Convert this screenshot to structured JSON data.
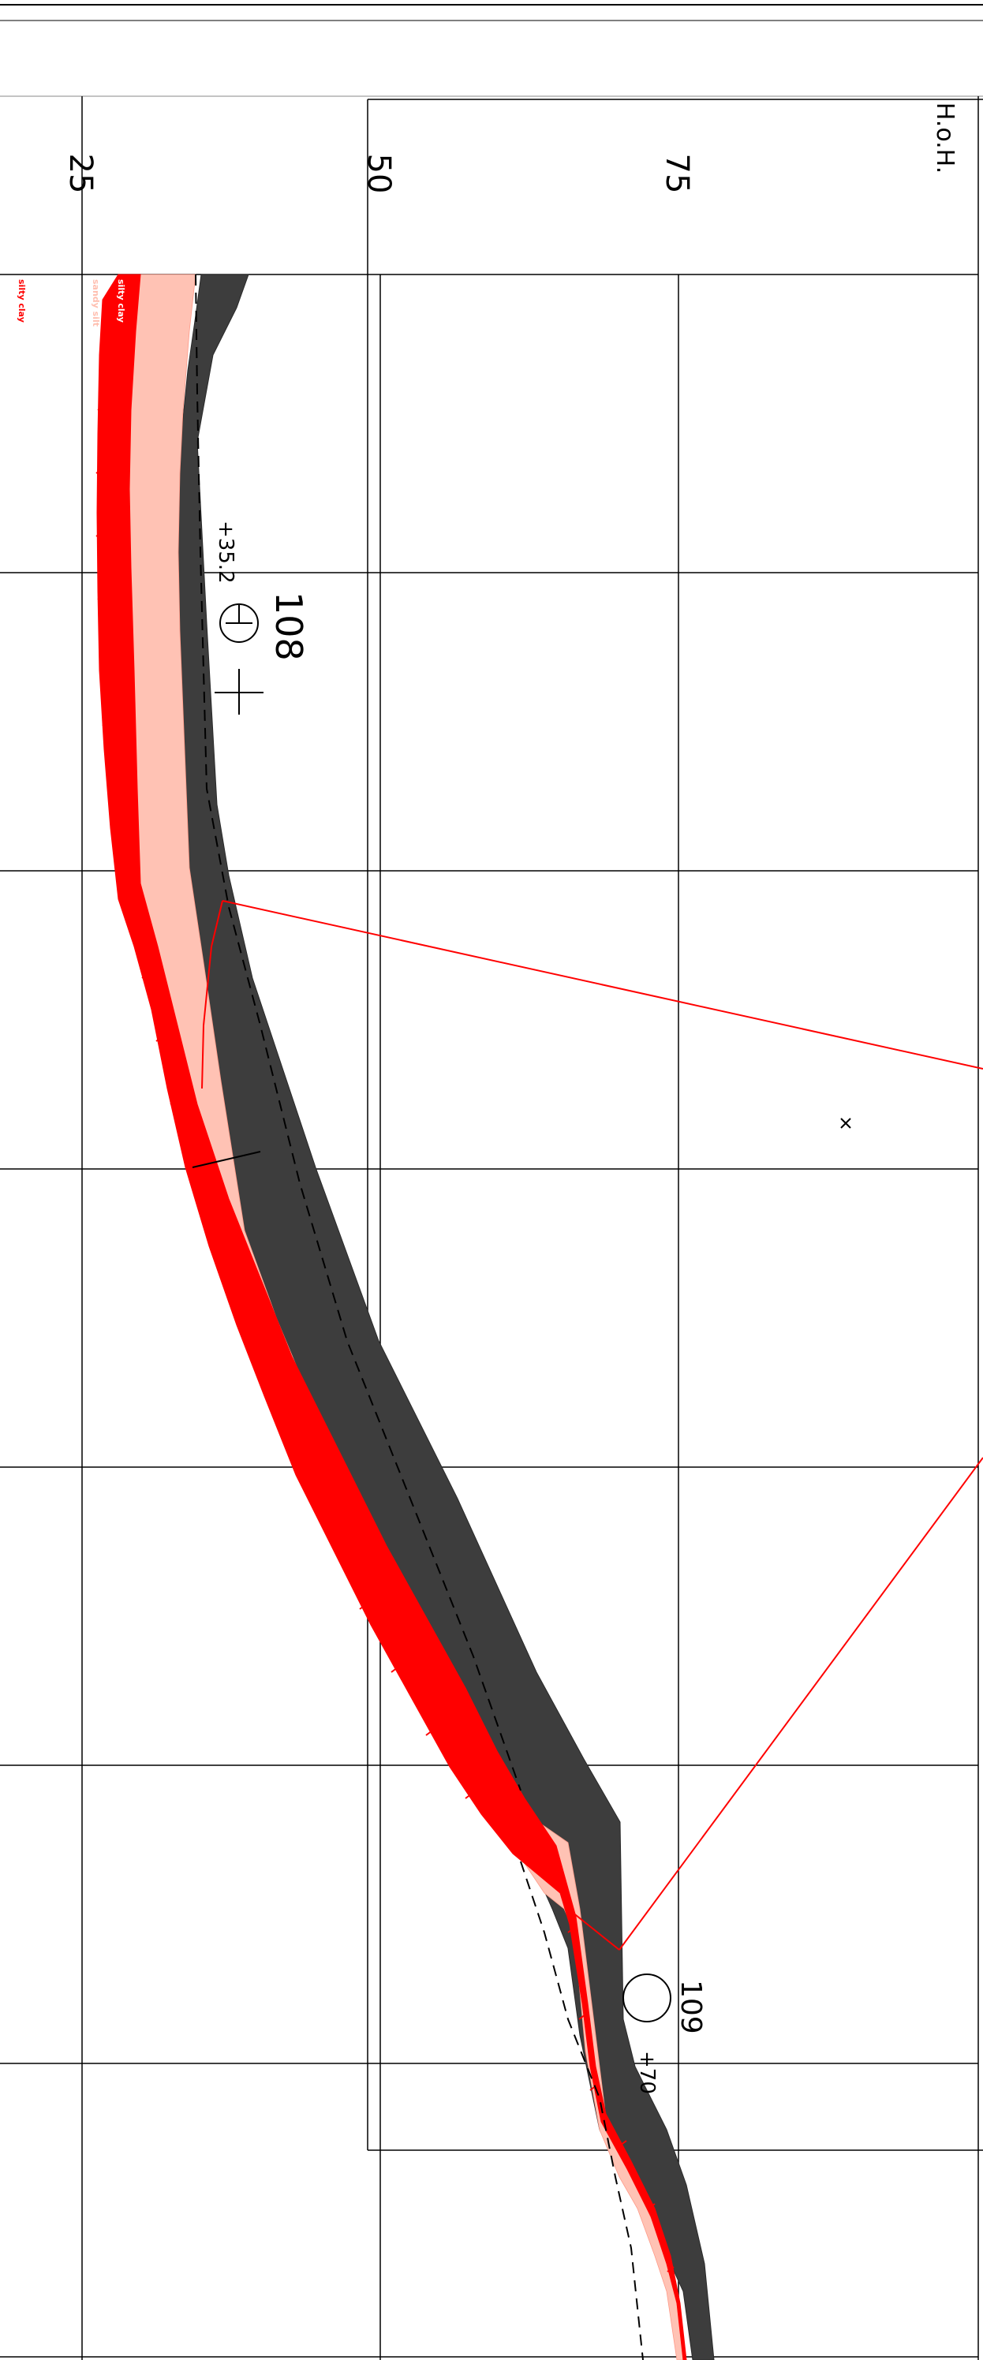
{
  "chart_data": {
    "type": "geotechnical-profile",
    "axis_unit": "H.o.H.",
    "elevation_ticks": [
      "25",
      "50",
      "75"
    ],
    "boreholes": [
      {
        "id": "108",
        "elevation": "+35.2",
        "symbol": "circle-with-cross"
      },
      {
        "id": "109",
        "elevation": "+70",
        "symbol": "circle"
      }
    ],
    "legend": [
      {
        "label": "silty clay",
        "color": "#ff0000"
      },
      {
        "label": "sandy silt",
        "color": "#ffbfb0"
      },
      {
        "label": "silty clay",
        "color": "#ff0000"
      }
    ]
  },
  "colors": {
    "dark_layer": "#3d3d3d",
    "peach_layer": "#ffc2b4",
    "red_layer": "#ff0000",
    "line": "#000000"
  }
}
